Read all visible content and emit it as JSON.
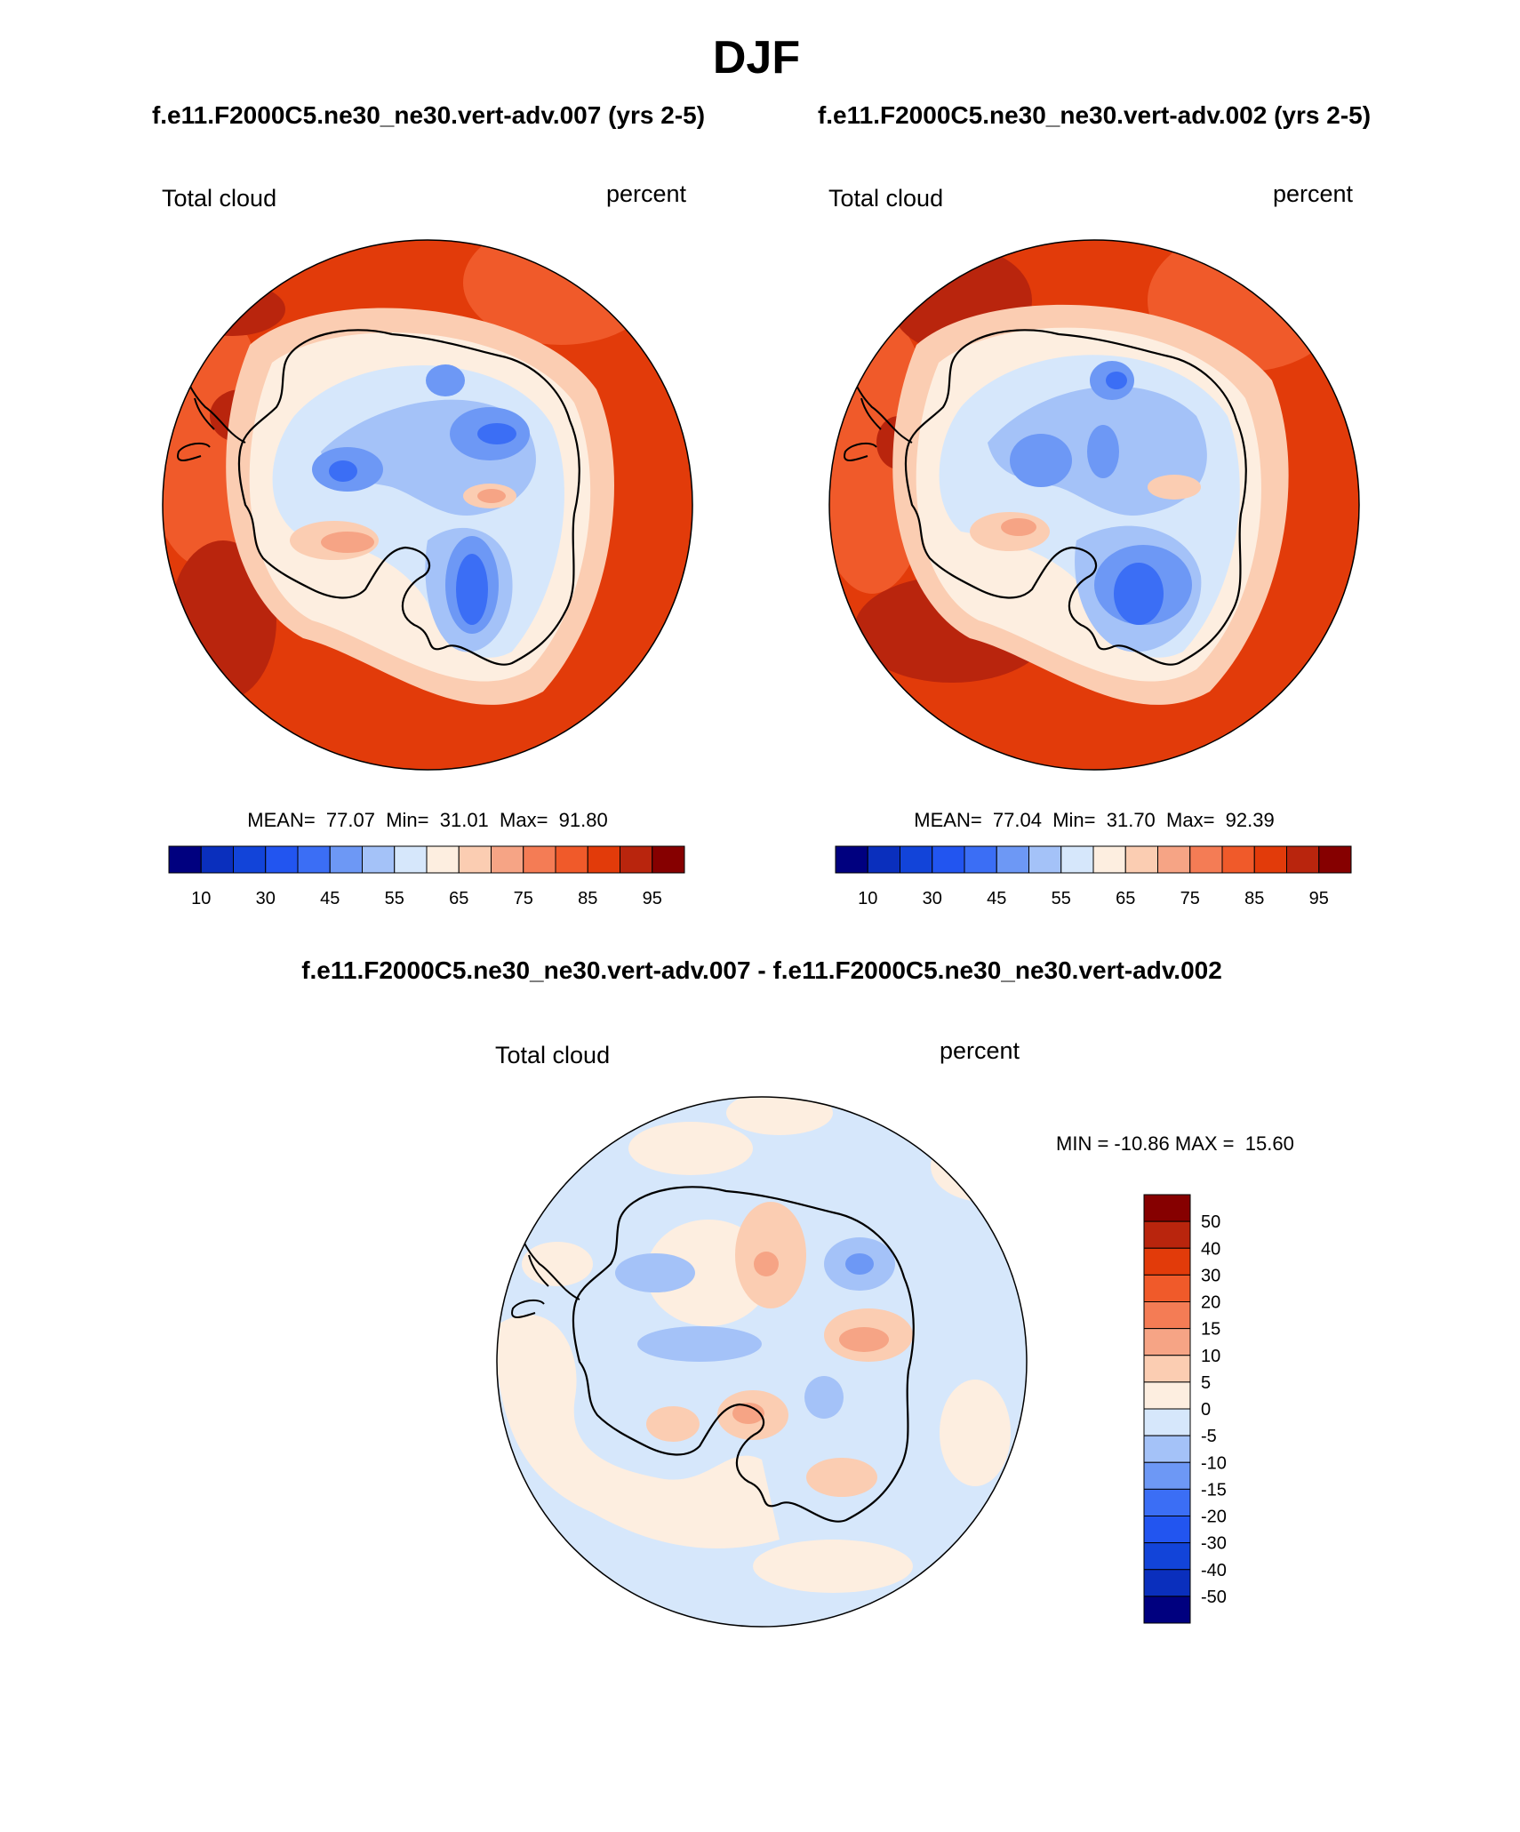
{
  "title": "DJF",
  "panels": [
    {
      "case_label": "f.e11.F2000C5.ne30_ne30.vert-adv.007 (yrs 2-5)",
      "variable": "Total cloud",
      "units": "percent",
      "stats": {
        "mean": "77.07",
        "min": "31.01",
        "max": "91.80"
      },
      "stats_text": "MEAN=  77.07  Min=  31.01  Max=  91.80"
    },
    {
      "case_label": "f.e11.F2000C5.ne30_ne30.vert-adv.002 (yrs 2-5)",
      "variable": "Total cloud",
      "units": "percent",
      "stats": {
        "mean": "77.04",
        "min": "31.70",
        "max": "92.39"
      },
      "stats_text": "MEAN=  77.04  Min=  31.70  Max=  92.39"
    }
  ],
  "difference": {
    "label": "f.e11.F2000C5.ne30_ne30.vert-adv.007 - f.e11.F2000C5.ne30_ne30.vert-adv.002",
    "variable": "Total cloud",
    "units": "percent",
    "stats": {
      "min": "-10.86",
      "max": "15.60"
    },
    "stats_text": "MIN = -10.86 MAX =  15.60"
  },
  "colorbar_abs": {
    "colors": [
      "#00007f",
      "#0a2fbd",
      "#1244d9",
      "#2255f0",
      "#3b6ef5",
      "#6d98f5",
      "#a4c2f8",
      "#d6e7fb",
      "#fdeee0",
      "#fbcdb2",
      "#f6a485",
      "#f47c55",
      "#f05a2a",
      "#e23b0a",
      "#b9250d",
      "#860000"
    ],
    "tick_labels": [
      "10",
      "30",
      "45",
      "55",
      "65",
      "75",
      "85",
      "95"
    ]
  },
  "colorbar_diff": {
    "colors": [
      "#860000",
      "#b9250d",
      "#e23b0a",
      "#f05a2a",
      "#f47c55",
      "#f6a485",
      "#fbcdb2",
      "#fdeee0",
      "#d6e7fb",
      "#a4c2f8",
      "#6d98f5",
      "#3b6ef5",
      "#2255f0",
      "#1244d9",
      "#0a2fbd",
      "#00007f"
    ],
    "tick_labels": [
      "50",
      "40",
      "30",
      "20",
      "15",
      "10",
      "5",
      "0",
      "-5",
      "-10",
      "-15",
      "-20",
      "-30",
      "-40",
      "-50"
    ]
  }
}
